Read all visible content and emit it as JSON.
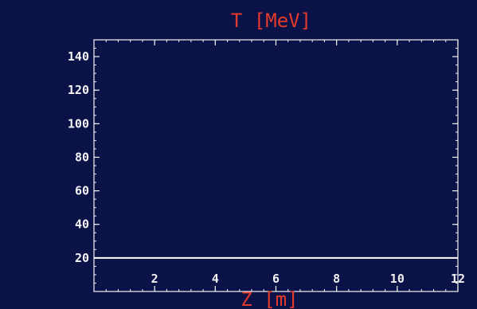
{
  "chart_data": {
    "type": "line",
    "title": "",
    "xlabel": "Z  [m]",
    "ylabel": "T  [MeV]",
    "xlim": [
      0,
      12
    ],
    "ylim": [
      0,
      150
    ],
    "x_ticks": [
      2,
      4,
      6,
      8,
      10,
      12
    ],
    "y_ticks": [
      20,
      40,
      60,
      80,
      100,
      120,
      140
    ],
    "grid": false,
    "legend": "none",
    "series": [
      {
        "x": [
          0,
          12
        ],
        "y": [
          20,
          20
        ]
      }
    ],
    "colors": {
      "background": "#0b1248",
      "frame": "#f2f2f2",
      "line": "#ffffff",
      "tick_labels": "#f2f2f2",
      "axis_titles": "#e33b2c"
    }
  }
}
